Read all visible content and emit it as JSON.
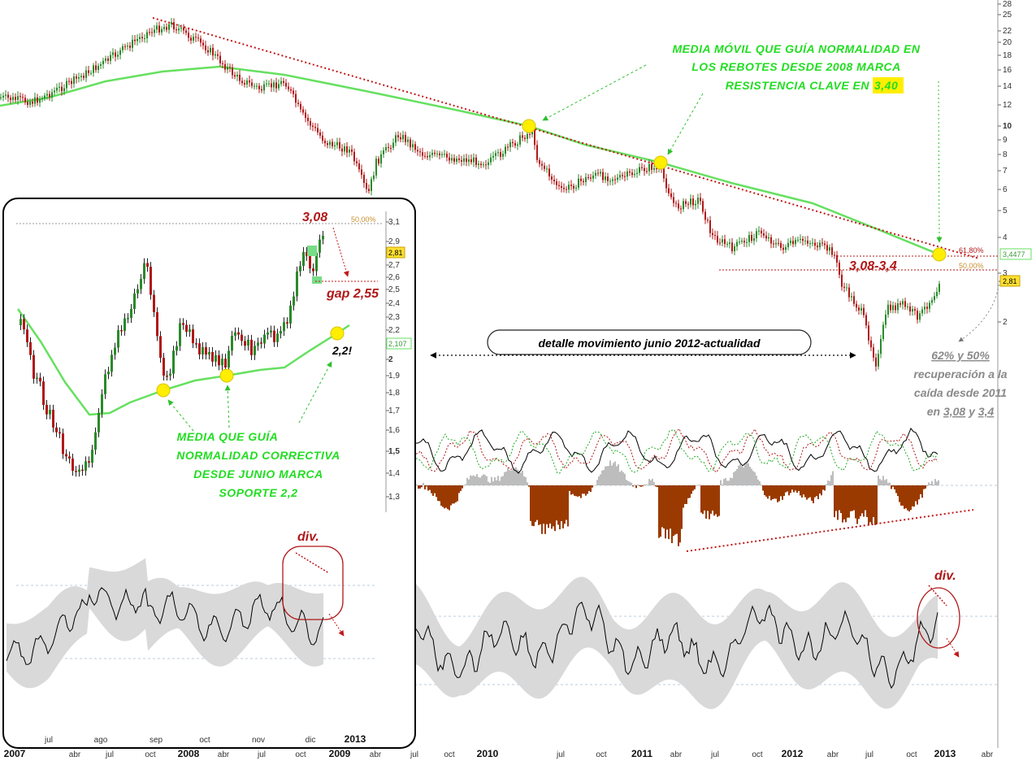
{
  "colors": {
    "price_up": "#2a8a2a",
    "price_down": "#b01818",
    "moving_average": "#66e060",
    "trendline": "#c01818",
    "annotation_green": "#22dd22",
    "annotation_red": "#b01818",
    "highlight": "#ffee00",
    "histogram": "#9a3a00",
    "band": "#d9d9d9"
  },
  "main_chart": {
    "y_ticks": [
      "28",
      "25",
      "22",
      "20",
      "18",
      "16",
      "14",
      "12",
      "10",
      "9",
      "8",
      "7",
      "6",
      "5",
      "4",
      "3",
      "2"
    ],
    "x_ticks": [
      "jul",
      "oct",
      "2010",
      "jul",
      "oct",
      "2011",
      "abr",
      "jul",
      "oct",
      "2012",
      "abr",
      "jul",
      "oct",
      "2013",
      "abr"
    ],
    "left_x_ticks": [
      "2007",
      "abr",
      "jul",
      "oct",
      "2008",
      "abr",
      "jul",
      "oct",
      "2009",
      "abr"
    ],
    "fib_labels": [
      "61,80%",
      "50,00%"
    ],
    "price_tags": [
      "3,4477",
      "2,81"
    ],
    "annotations": {
      "ma_line1": "MEDIA MÓVIL QUE GUÍA NORMALIDAD EN",
      "ma_line2": "LOS REBOTES DESDE 2008 MARCA",
      "ma_line3": "RESISTENCIA CLAVE EN",
      "ma_value": "3,40",
      "zone": "3,08-3,4",
      "detail": "detalle movimiento junio 2012-actualidad",
      "fib_line1": "62% y 50%",
      "fib_line2": "recuperación a la",
      "fib_line3": "caída desde 2011",
      "fib_line4_a": "en",
      "fib_line4_b": "3,08",
      "fib_line4_c": "y",
      "fib_line4_d": "3,4",
      "div": "div."
    }
  },
  "inset": {
    "y_ticks": [
      "3,1",
      "2,9",
      "2,8",
      "2,7",
      "2,6",
      "2,5",
      "2,4",
      "2,3",
      "2,2",
      "2,1",
      "2",
      "1,9",
      "1,8",
      "1,7",
      "1,6",
      "1,5",
      "1,4",
      "1,3"
    ],
    "x_ticks": [
      "jul",
      "ago",
      "sep",
      "oct",
      "nov",
      "dic",
      "2013"
    ],
    "fib_label": "50,00%",
    "price_tags": [
      "2,81",
      "2,107"
    ],
    "annotations": {
      "high": "3,08",
      "gap": "gap 2,55",
      "support": "2,2!",
      "ma_line1": "MEDIA QUE GUÍA",
      "ma_line2": "NORMALIDAD CORRECTIVA",
      "ma_line3": "DESDE JUNIO MARCA",
      "ma_line4": "SOPORTE 2,2",
      "div": "div."
    }
  },
  "chart_data": {
    "type": "line",
    "y_scale": "log",
    "ylim": [
      1.8,
      28
    ],
    "series": [],
    "price_approx": {
      "x": [
        "2007-01",
        "2007-07",
        "2007-10",
        "2008-01",
        "2008-06",
        "2008-10",
        "2009-03",
        "2009-06",
        "2009-10",
        "2010-04",
        "2010-07",
        "2010-10",
        "2011-01",
        "2011-04",
        "2011-07",
        "2011-10",
        "2012-01",
        "2012-04",
        "2012-07",
        "2012-10",
        "2012-12"
      ],
      "values": [
        12.5,
        15.5,
        22,
        21,
        15,
        7.5,
        5.5,
        8.5,
        8,
        10,
        6,
        6.8,
        7.3,
        4.9,
        3.7,
        4.3,
        3.8,
        3.3,
        1.95,
        2.3,
        2.81
      ]
    },
    "ma_approx": {
      "x": [
        "2007-01",
        "2008-01",
        "2009-01",
        "2010-01",
        "2011-01",
        "2012-01",
        "2012-12"
      ],
      "values": [
        11.5,
        16,
        13.5,
        11,
        7.8,
        5,
        3.4
      ]
    },
    "fib_levels": [
      {
        "label": "61,80%",
        "value": 3.4477
      },
      {
        "label": "50,00%",
        "value": 3.08
      }
    ],
    "last_price": 2.81,
    "inset": {
      "type": "line",
      "x": [
        "2012-06",
        "2012-07",
        "2012-08",
        "2012-09",
        "2012-10",
        "2012-11",
        "2012-12"
      ],
      "price_approx": [
        1.9,
        1.45,
        2.05,
        2.35,
        1.95,
        2.1,
        2.81
      ],
      "ma_approx": [
        2.3,
        1.7,
        1.75,
        1.85,
        1.95,
        2.0,
        2.2
      ],
      "ylim": [
        1.3,
        3.1
      ]
    }
  }
}
